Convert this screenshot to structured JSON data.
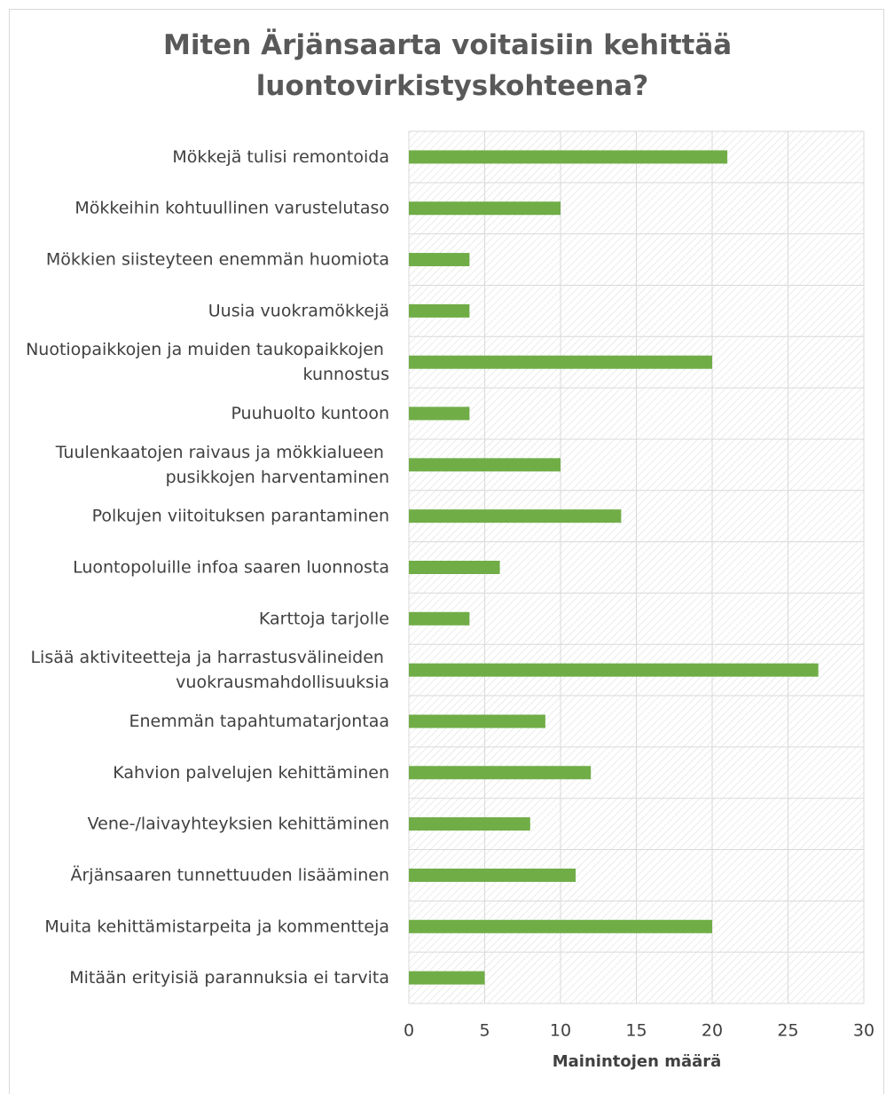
{
  "chart_data": {
    "type": "bar",
    "orientation": "horizontal",
    "title": "Miten Ärjänsaarta voitaisiin kehittää luontovirkistyskohteena?",
    "categories": [
      "Mökkejä tulisi remontoida",
      "Mökkeihin kohtuullinen varustelutaso",
      "Mökkien siisteyteen enemmän huomiota",
      "Uusia vuokramökkejä",
      "Nuotiopaikkojen ja muiden taukopaikkojen kunnostus",
      "Puuhuolto kuntoon",
      "Tuulenkaatojen raivaus ja mökkialueen pusikkojen harventaminen",
      "Polkujen viitoituksen parantaminen",
      "Luontopoluille infoa saaren luonnosta",
      "Karttoja tarjolle",
      "Lisää aktiviteetteja ja harrastusvälineiden vuokrausmahdollisuuksia",
      "Enemmän tapahtumatarjontaa",
      "Kahvion palvelujen kehittäminen",
      "Vene-/laivayhteyksien kehittäminen",
      "Ärjänsaaren tunnettuuden lisääminen",
      "Muita kehittämistarpeita ja kommentteja",
      "Mitään erityisiä parannuksia ei tarvita"
    ],
    "values": [
      21,
      10,
      4,
      4,
      20,
      4,
      10,
      14,
      6,
      4,
      27,
      9,
      12,
      8,
      11,
      20,
      5
    ],
    "color": "#70ad47",
    "xlabel": "Mainintojen määrä",
    "xlim": [
      0,
      30
    ],
    "xticks": [
      0,
      5,
      10,
      15,
      20,
      25,
      30
    ],
    "grid": true
  }
}
